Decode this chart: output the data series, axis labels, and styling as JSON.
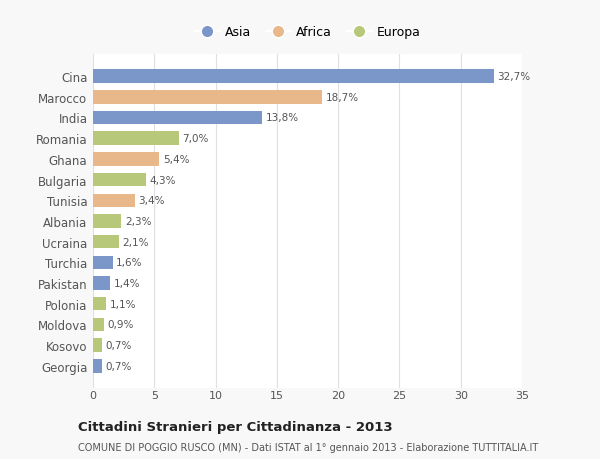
{
  "countries": [
    "Cina",
    "Marocco",
    "India",
    "Romania",
    "Ghana",
    "Bulgaria",
    "Tunisia",
    "Albania",
    "Ucraina",
    "Turchia",
    "Pakistan",
    "Polonia",
    "Moldova",
    "Kosovo",
    "Georgia"
  ],
  "values": [
    32.7,
    18.7,
    13.8,
    7.0,
    5.4,
    4.3,
    3.4,
    2.3,
    2.1,
    1.6,
    1.4,
    1.1,
    0.9,
    0.7,
    0.7
  ],
  "labels": [
    "32,7%",
    "18,7%",
    "13,8%",
    "7,0%",
    "5,4%",
    "4,3%",
    "3,4%",
    "2,3%",
    "2,1%",
    "1,6%",
    "1,4%",
    "1,1%",
    "0,9%",
    "0,7%",
    "0,7%"
  ],
  "continents": [
    "Asia",
    "Africa",
    "Asia",
    "Europa",
    "Africa",
    "Europa",
    "Africa",
    "Europa",
    "Europa",
    "Asia",
    "Asia",
    "Europa",
    "Europa",
    "Europa",
    "Asia"
  ],
  "colors": {
    "Asia": "#7b96c8",
    "Africa": "#e8b88a",
    "Europa": "#b8c87a"
  },
  "title": "Cittadini Stranieri per Cittadinanza - 2013",
  "subtitle": "COMUNE DI POGGIO RUSCO (MN) - Dati ISTAT al 1° gennaio 2013 - Elaborazione TUTTITALIA.IT",
  "xlim": [
    0,
    35
  ],
  "xticks": [
    0,
    5,
    10,
    15,
    20,
    25,
    30,
    35
  ],
  "bg_color": "#f8f8f8",
  "plot_bg_color": "#ffffff",
  "grid_color": "#e0e0e0"
}
